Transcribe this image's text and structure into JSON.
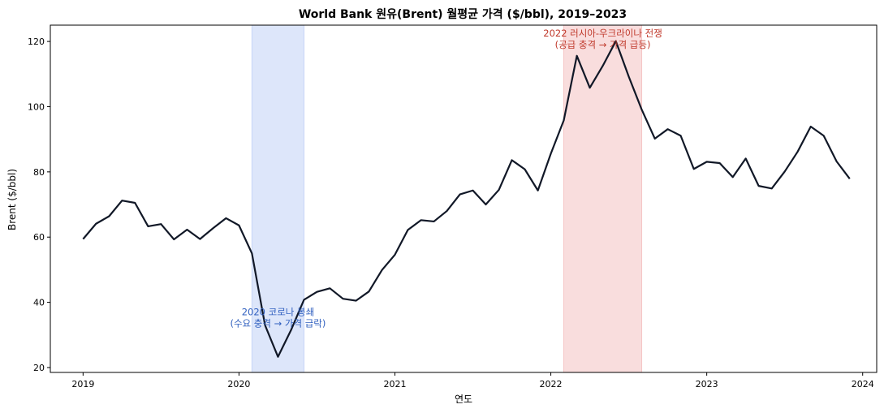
{
  "chart_data": {
    "type": "line",
    "title": "World Bank 원유(Brent) 월평균 가격 ($/bbl), 2019–2023",
    "xlabel": "연도",
    "ylabel": "Brent ($/bbl)",
    "xlim": [
      2018.79,
      2024.09
    ],
    "ylim": [
      18.5,
      125
    ],
    "xticks": [
      2019,
      2020,
      2021,
      2022,
      2023,
      2024
    ],
    "xtick_labels": [
      "2019",
      "2020",
      "2021",
      "2022",
      "2023",
      "2024"
    ],
    "yticks": [
      20,
      40,
      60,
      80,
      100,
      120
    ],
    "ytick_labels": [
      "20",
      "40",
      "60",
      "80",
      "100",
      "120"
    ],
    "grid": false,
    "line_color": "#111827",
    "series": [
      {
        "x": [
          2019.0,
          2019.083,
          2019.167,
          2019.25,
          2019.333,
          2019.417,
          2019.5,
          2019.583,
          2019.667,
          2019.75,
          2019.833,
          2019.917,
          2020.0,
          2020.083,
          2020.167,
          2020.25,
          2020.333,
          2020.417,
          2020.5,
          2020.583,
          2020.667,
          2020.75,
          2020.833,
          2020.917,
          2021.0,
          2021.083,
          2021.167,
          2021.25,
          2021.333,
          2021.417,
          2021.5,
          2021.583,
          2021.667,
          2021.75,
          2021.833,
          2021.917,
          2022.0,
          2022.083,
          2022.167,
          2022.25,
          2022.333,
          2022.417,
          2022.5,
          2022.583,
          2022.667,
          2022.75,
          2022.833,
          2022.917,
          2023.0,
          2023.083,
          2023.167,
          2023.25,
          2023.333,
          2023.417,
          2023.5,
          2023.583,
          2023.667,
          2023.75,
          2023.833,
          2023.917
        ],
        "values": [
          59.4,
          64.1,
          66.4,
          71.2,
          70.5,
          63.3,
          64.0,
          59.3,
          62.3,
          59.4,
          62.7,
          65.8,
          63.6,
          55.0,
          33.0,
          23.3,
          31.4,
          40.8,
          43.2,
          44.3,
          41.1,
          40.5,
          43.3,
          49.9,
          54.6,
          62.2,
          65.2,
          64.8,
          68.0,
          73.1,
          74.3,
          70.0,
          74.5,
          83.6,
          80.8,
          74.3,
          85.6,
          95.8,
          115.6,
          105.8,
          112.5,
          120.1,
          109.2,
          99.1,
          90.2,
          93.1,
          91.1,
          80.9,
          83.1,
          82.7,
          78.4,
          84.1,
          75.7,
          74.9,
          80.1,
          86.2,
          93.9,
          91.1,
          83.2,
          77.9
        ]
      }
    ],
    "shaded_regions": [
      {
        "x0": 2020.083,
        "x1": 2020.417,
        "color": "#c7d5f7"
      },
      {
        "x0": 2022.083,
        "x1": 2022.583,
        "color": "#f5c6c6"
      }
    ],
    "annotations": [
      {
        "lines": [
          "2020 코로나 봉쇄",
          "(수요 충격 → 가격 급락)"
        ],
        "x": 2020.25,
        "y": 36,
        "color": "#2f5fbf"
      },
      {
        "lines": [
          "2022 러시아-우크라이나 전쟁",
          "(공급 충격 → 가격 급등)"
        ],
        "x": 2022.333,
        "y": 121.5,
        "color": "#c0392b"
      }
    ]
  }
}
